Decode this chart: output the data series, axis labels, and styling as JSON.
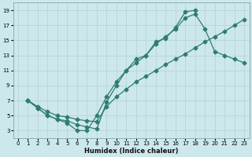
{
  "xlabel": "Humidex (Indice chaleur)",
  "bg_color": "#cde8ec",
  "grid_color": "#b8d4d8",
  "line_color": "#2e7d6e",
  "xlim": [
    -0.5,
    23.5
  ],
  "ylim": [
    2.0,
    20.0
  ],
  "xticks": [
    0,
    1,
    2,
    3,
    4,
    5,
    6,
    7,
    8,
    9,
    10,
    11,
    12,
    13,
    14,
    15,
    16,
    17,
    18,
    19,
    20,
    21,
    22,
    23
  ],
  "yticks": [
    3,
    5,
    7,
    9,
    11,
    13,
    15,
    17,
    19
  ],
  "line1_x": [
    1,
    2,
    3,
    4,
    5,
    6,
    7,
    8,
    9,
    10,
    11,
    12,
    13,
    14,
    15,
    16,
    17,
    18
  ],
  "line1_y": [
    7,
    6,
    5,
    4.5,
    4,
    3,
    3,
    5,
    7.5,
    9.5,
    11,
    12.5,
    13,
    14.8,
    15.3,
    16.7,
    18.8,
    19
  ],
  "line2_x": [
    1,
    2,
    3,
    4,
    5,
    6,
    7,
    8,
    9,
    10,
    11,
    12,
    13,
    14,
    15,
    16,
    17,
    18,
    19,
    20,
    21,
    22,
    23
  ],
  "line2_y": [
    7,
    6,
    5,
    4.5,
    4.3,
    3.8,
    3.5,
    3.2,
    6.8,
    9,
    11,
    12,
    13,
    14.5,
    15.5,
    16.5,
    18,
    18.5,
    16.5,
    13.5,
    13,
    12.5,
    12
  ],
  "line3_x": [
    1,
    2,
    3,
    4,
    5,
    6,
    7,
    8,
    9,
    10,
    11,
    12,
    13,
    14,
    15,
    16,
    17,
    18,
    19,
    20,
    21,
    22,
    23
  ],
  "line3_y": [
    7,
    6.2,
    5.5,
    5,
    4.8,
    4.5,
    4.3,
    4.2,
    6.2,
    7.5,
    8.5,
    9.5,
    10.2,
    11,
    11.8,
    12.5,
    13.2,
    14,
    14.8,
    15.5,
    16.2,
    17,
    17.8
  ]
}
